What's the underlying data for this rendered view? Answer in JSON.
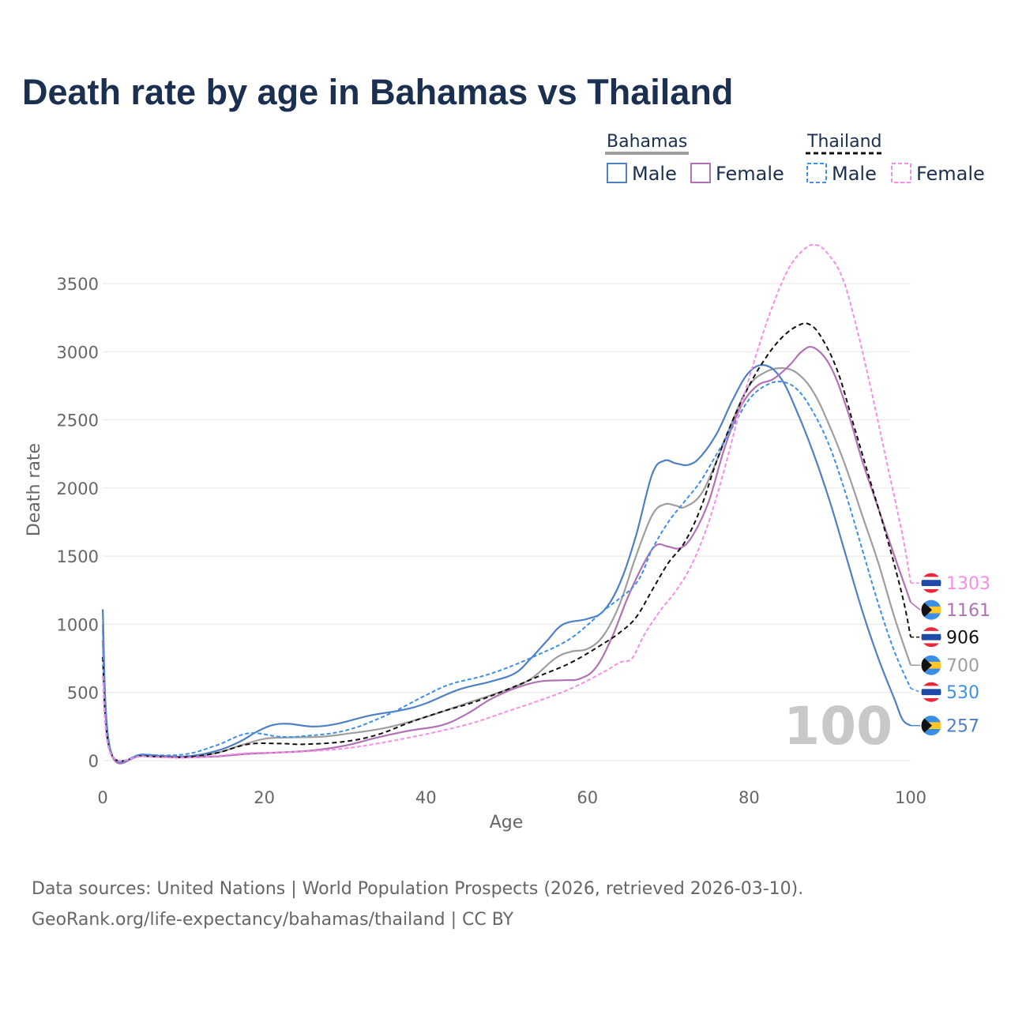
{
  "chart_data": {
    "type": "line",
    "title": "Death rate by age in Bahamas vs Thailand",
    "xlabel": "Age",
    "ylabel": "Death rate",
    "xlim": [
      0,
      100
    ],
    "ylim": [
      -100,
      3800
    ],
    "x_ticks": [
      0,
      20,
      40,
      60,
      80,
      100
    ],
    "y_ticks": [
      0,
      500,
      1000,
      1500,
      2000,
      2500,
      3000,
      3500
    ],
    "grid": true,
    "year_watermark": "100",
    "legend": {
      "groups": [
        {
          "name": "Bahamas",
          "items": [
            "Male",
            "Female"
          ]
        },
        {
          "name": "Thailand",
          "items": [
            "Male",
            "Female"
          ]
        }
      ]
    },
    "series": [
      {
        "key": "bhs-total",
        "country": "Bahamas",
        "sex": "Total",
        "color": "#9e9e9e",
        "dash": "solid",
        "end_label": "700",
        "flag": "bahamas-flag",
        "points": [
          [
            0,
            1000
          ],
          [
            1,
            60
          ],
          [
            5,
            40
          ],
          [
            10,
            25
          ],
          [
            14,
            55
          ],
          [
            17,
            110
          ],
          [
            20,
            160
          ],
          [
            23,
            170
          ],
          [
            27,
            175
          ],
          [
            30,
            195
          ],
          [
            35,
            240
          ],
          [
            40,
            320
          ],
          [
            45,
            420
          ],
          [
            50,
            520
          ],
          [
            53,
            600
          ],
          [
            56,
            750
          ],
          [
            58,
            800
          ],
          [
            60,
            820
          ],
          [
            62,
            920
          ],
          [
            64,
            1150
          ],
          [
            66,
            1500
          ],
          [
            68,
            1800
          ],
          [
            69.5,
            1880
          ],
          [
            71,
            1870
          ],
          [
            72,
            1860
          ],
          [
            74,
            1950
          ],
          [
            76,
            2200
          ],
          [
            78,
            2500
          ],
          [
            80,
            2750
          ],
          [
            82,
            2850
          ],
          [
            84,
            2880
          ],
          [
            86,
            2840
          ],
          [
            88,
            2700
          ],
          [
            90,
            2450
          ],
          [
            92,
            2150
          ],
          [
            94,
            1800
          ],
          [
            96,
            1450
          ],
          [
            98,
            1050
          ],
          [
            100,
            700
          ]
        ]
      },
      {
        "key": "bhs-male",
        "country": "Bahamas",
        "sex": "Male",
        "color": "#4f7fc4",
        "dash": "solid",
        "end_label": "257",
        "flag": "bahamas-flag",
        "points": [
          [
            0,
            1110
          ],
          [
            1,
            70
          ],
          [
            5,
            45
          ],
          [
            10,
            30
          ],
          [
            14,
            70
          ],
          [
            17,
            140
          ],
          [
            19,
            210
          ],
          [
            21,
            260
          ],
          [
            23,
            270
          ],
          [
            26,
            250
          ],
          [
            29,
            270
          ],
          [
            33,
            330
          ],
          [
            37,
            370
          ],
          [
            40,
            420
          ],
          [
            44,
            520
          ],
          [
            48,
            580
          ],
          [
            51,
            640
          ],
          [
            53,
            750
          ],
          [
            55,
            880
          ],
          [
            57,
            1000
          ],
          [
            60,
            1040
          ],
          [
            62,
            1100
          ],
          [
            64,
            1300
          ],
          [
            66,
            1650
          ],
          [
            68,
            2100
          ],
          [
            69.5,
            2200
          ],
          [
            71,
            2180
          ],
          [
            72.5,
            2170
          ],
          [
            74,
            2230
          ],
          [
            76,
            2400
          ],
          [
            78,
            2650
          ],
          [
            80,
            2850
          ],
          [
            82,
            2900
          ],
          [
            84,
            2800
          ],
          [
            86,
            2550
          ],
          [
            88,
            2250
          ],
          [
            90,
            1900
          ],
          [
            92,
            1500
          ],
          [
            94,
            1100
          ],
          [
            96,
            750
          ],
          [
            98,
            450
          ],
          [
            99,
            300
          ],
          [
            100,
            257
          ]
        ]
      },
      {
        "key": "bhs-female",
        "country": "Bahamas",
        "sex": "Female",
        "color": "#b172b5",
        "dash": "solid",
        "end_label": "1161",
        "flag": "bahamas-flag",
        "points": [
          [
            0,
            880
          ],
          [
            1,
            55
          ],
          [
            5,
            35
          ],
          [
            10,
            25
          ],
          [
            14,
            30
          ],
          [
            18,
            50
          ],
          [
            22,
            60
          ],
          [
            26,
            75
          ],
          [
            30,
            110
          ],
          [
            34,
            170
          ],
          [
            38,
            220
          ],
          [
            42,
            260
          ],
          [
            45,
            340
          ],
          [
            48,
            450
          ],
          [
            51,
            530
          ],
          [
            54,
            580
          ],
          [
            57,
            590
          ],
          [
            59,
            600
          ],
          [
            61,
            680
          ],
          [
            63,
            900
          ],
          [
            65,
            1200
          ],
          [
            67,
            1450
          ],
          [
            68.5,
            1580
          ],
          [
            70,
            1570
          ],
          [
            71.5,
            1560
          ],
          [
            73,
            1650
          ],
          [
            75,
            1900
          ],
          [
            77,
            2300
          ],
          [
            79,
            2600
          ],
          [
            81,
            2750
          ],
          [
            83,
            2800
          ],
          [
            85,
            2900
          ],
          [
            86.5,
            3000
          ],
          [
            88,
            3030
          ],
          [
            90,
            2900
          ],
          [
            92,
            2600
          ],
          [
            94,
            2200
          ],
          [
            96,
            1850
          ],
          [
            98,
            1500
          ],
          [
            100,
            1161
          ]
        ]
      },
      {
        "key": "tha-total",
        "country": "Thailand",
        "sex": "Total",
        "color": "#111111",
        "dash": "dashed",
        "end_label": "906",
        "flag": "thailand-flag",
        "points": [
          [
            0,
            760
          ],
          [
            1,
            60
          ],
          [
            5,
            35
          ],
          [
            10,
            25
          ],
          [
            14,
            55
          ],
          [
            18,
            120
          ],
          [
            22,
            125
          ],
          [
            25,
            120
          ],
          [
            30,
            140
          ],
          [
            34,
            190
          ],
          [
            38,
            280
          ],
          [
            42,
            360
          ],
          [
            46,
            430
          ],
          [
            50,
            520
          ],
          [
            54,
            620
          ],
          [
            58,
            720
          ],
          [
            62,
            860
          ],
          [
            64,
            940
          ],
          [
            66,
            1050
          ],
          [
            68,
            1250
          ],
          [
            70,
            1450
          ],
          [
            72,
            1600
          ],
          [
            74,
            1850
          ],
          [
            76,
            2200
          ],
          [
            78,
            2500
          ],
          [
            80,
            2750
          ],
          [
            82,
            2950
          ],
          [
            84,
            3100
          ],
          [
            86,
            3190
          ],
          [
            87.5,
            3200
          ],
          [
            89,
            3100
          ],
          [
            91,
            2850
          ],
          [
            93,
            2450
          ],
          [
            95,
            2050
          ],
          [
            97,
            1650
          ],
          [
            99,
            1200
          ],
          [
            100,
            906
          ]
        ]
      },
      {
        "key": "tha-male",
        "country": "Thailand",
        "sex": "Male",
        "color": "#3d8fe8",
        "dash": "dashed",
        "end_label": "530",
        "flag": "thailand-flag",
        "points": [
          [
            0,
            950
          ],
          [
            1,
            70
          ],
          [
            5,
            45
          ],
          [
            10,
            45
          ],
          [
            14,
            110
          ],
          [
            18,
            200
          ],
          [
            22,
            175
          ],
          [
            25,
            180
          ],
          [
            30,
            220
          ],
          [
            35,
            330
          ],
          [
            40,
            480
          ],
          [
            43,
            560
          ],
          [
            47,
            620
          ],
          [
            50,
            680
          ],
          [
            54,
            780
          ],
          [
            58,
            900
          ],
          [
            62,
            1100
          ],
          [
            66,
            1300
          ],
          [
            68,
            1550
          ],
          [
            70,
            1750
          ],
          [
            72,
            1900
          ],
          [
            74,
            2050
          ],
          [
            76,
            2250
          ],
          [
            78,
            2450
          ],
          [
            80,
            2650
          ],
          [
            82,
            2750
          ],
          [
            84,
            2780
          ],
          [
            86,
            2720
          ],
          [
            88,
            2550
          ],
          [
            90,
            2300
          ],
          [
            92,
            1950
          ],
          [
            94,
            1550
          ],
          [
            96,
            1150
          ],
          [
            98,
            800
          ],
          [
            100,
            530
          ]
        ]
      },
      {
        "key": "tha-female",
        "country": "Thailand",
        "sex": "Female",
        "color": "#f68de6",
        "dash": "dashed",
        "end_label": "1303",
        "flag": "thailand-flag",
        "points": [
          [
            0,
            620
          ],
          [
            1,
            50
          ],
          [
            5,
            30
          ],
          [
            10,
            20
          ],
          [
            14,
            35
          ],
          [
            18,
            55
          ],
          [
            22,
            60
          ],
          [
            26,
            70
          ],
          [
            30,
            90
          ],
          [
            34,
            125
          ],
          [
            38,
            170
          ],
          [
            42,
            220
          ],
          [
            46,
            280
          ],
          [
            50,
            360
          ],
          [
            54,
            440
          ],
          [
            58,
            530
          ],
          [
            62,
            650
          ],
          [
            64,
            720
          ],
          [
            65.5,
            750
          ],
          [
            67,
            920
          ],
          [
            69,
            1100
          ],
          [
            71,
            1250
          ],
          [
            73,
            1450
          ],
          [
            75,
            1750
          ],
          [
            77,
            2150
          ],
          [
            79,
            2600
          ],
          [
            81,
            3000
          ],
          [
            83,
            3350
          ],
          [
            85,
            3620
          ],
          [
            87,
            3760
          ],
          [
            88.5,
            3780
          ],
          [
            90,
            3700
          ],
          [
            91.5,
            3550
          ],
          [
            93,
            3250
          ],
          [
            95,
            2750
          ],
          [
            97,
            2200
          ],
          [
            99,
            1650
          ],
          [
            100,
            1303
          ]
        ]
      }
    ]
  },
  "source_line_1": "Data sources: United Nations | World Population Prospects (2026, retrieved 2026-03-10).",
  "source_line_2": "GeoRank.org/life-expectancy/bahamas/thailand | CC BY"
}
